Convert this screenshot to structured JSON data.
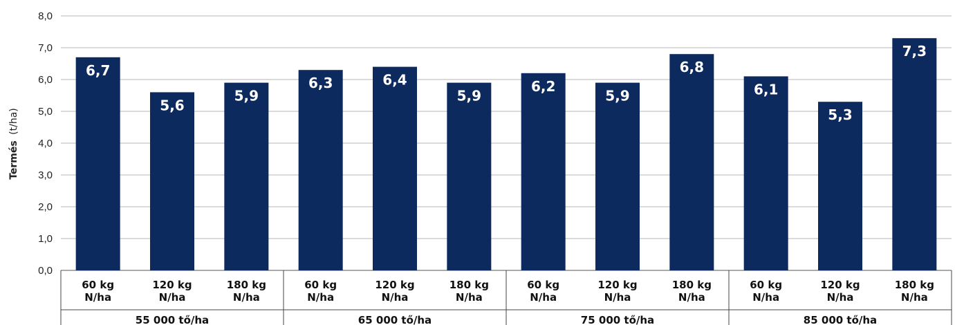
{
  "chart_data": {
    "type": "bar",
    "ylabel_bold": "Termés",
    "ylabel_unit": "(t/ha)",
    "ylim": [
      0,
      8
    ],
    "yticks": [
      "0,0",
      "1,0",
      "2,0",
      "3,0",
      "4,0",
      "5,0",
      "6,0",
      "7,0",
      "8,0"
    ],
    "grid": true,
    "bar_color": "#0d2a5e",
    "categories": [
      [
        "60 kg",
        "N/ha"
      ],
      [
        "120 kg",
        "N/ha"
      ],
      [
        "180 kg",
        "N/ha"
      ],
      [
        "60 kg",
        "N/ha"
      ],
      [
        "120 kg",
        "N/ha"
      ],
      [
        "180 kg",
        "N/ha"
      ],
      [
        "60 kg",
        "N/ha"
      ],
      [
        "120 kg",
        "N/ha"
      ],
      [
        "180 kg",
        "N/ha"
      ],
      [
        "60 kg",
        "N/ha"
      ],
      [
        "120 kg",
        "N/ha"
      ],
      [
        "180 kg",
        "N/ha"
      ]
    ],
    "groups": [
      "55 000 tő/ha",
      "65 000 tő/ha",
      "75 000 tő/ha",
      "85 000 tő/ha"
    ],
    "values": [
      6.7,
      5.6,
      5.9,
      6.3,
      6.4,
      5.9,
      6.2,
      5.9,
      6.8,
      6.1,
      5.3,
      7.3
    ],
    "value_labels": [
      "6,7",
      "5,6",
      "5,9",
      "6,3",
      "6,4",
      "5,9",
      "6,2",
      "5,9",
      "6,8",
      "6,1",
      "5,3",
      "7,3"
    ]
  }
}
